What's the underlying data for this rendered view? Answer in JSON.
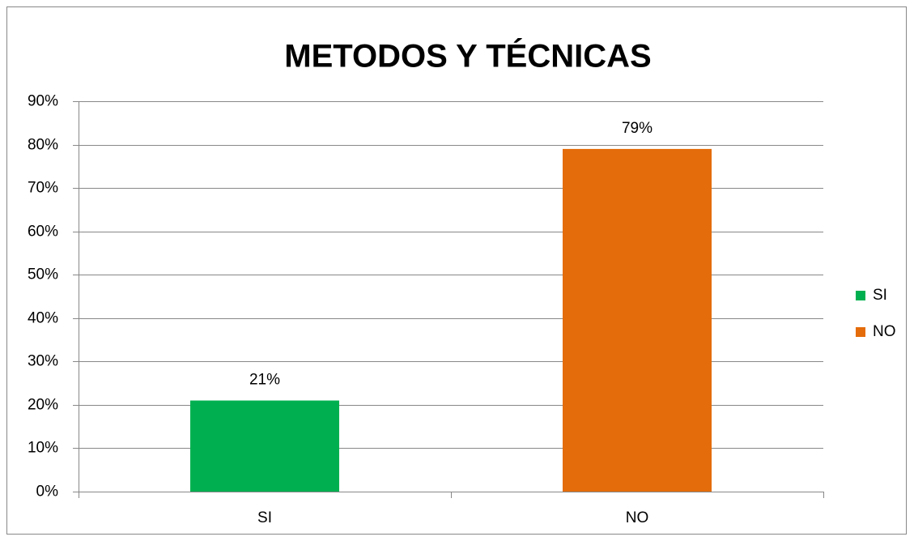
{
  "chart_data": {
    "type": "bar",
    "title": "METODOS Y TÉCNICAS",
    "categories": [
      "SI",
      "NO"
    ],
    "values": [
      21,
      79
    ],
    "value_labels": [
      "21%",
      "79%"
    ],
    "colors": [
      "#00b050",
      "#e46c0a"
    ],
    "ylim": [
      0,
      90
    ],
    "yticks": [
      {
        "value": 0,
        "label": "0%"
      },
      {
        "value": 10,
        "label": "10%"
      },
      {
        "value": 20,
        "label": "20%"
      },
      {
        "value": 30,
        "label": "30%"
      },
      {
        "value": 40,
        "label": "40%"
      },
      {
        "value": 50,
        "label": "50%"
      },
      {
        "value": 60,
        "label": "60%"
      },
      {
        "value": 70,
        "label": "70%"
      },
      {
        "value": 80,
        "label": "80%"
      },
      {
        "value": 90,
        "label": "90%"
      }
    ],
    "grid": true,
    "legend": "right"
  }
}
